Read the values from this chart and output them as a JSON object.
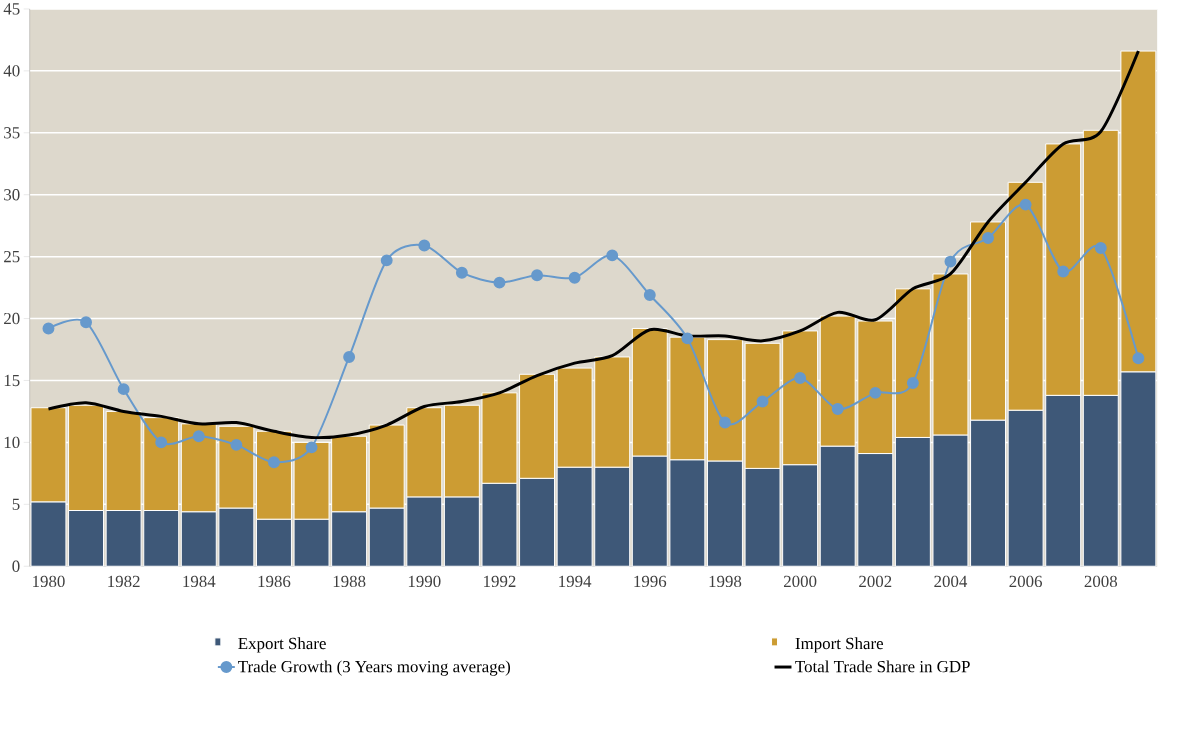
{
  "chart_data": {
    "type": "bar",
    "stacked": true,
    "categories": [
      "1980",
      null,
      "1982",
      null,
      "1984",
      null,
      "1986",
      null,
      "1988",
      null,
      "1990",
      null,
      "1992",
      null,
      "1994",
      null,
      "1996",
      null,
      "1998",
      null,
      "2000",
      null,
      "2002",
      null,
      "2004",
      null,
      "2006",
      null,
      "2008",
      null
    ],
    "series": [
      {
        "name": "Export Share",
        "color": "#3e5878",
        "values": [
          5.2,
          4.5,
          4.5,
          4.5,
          4.4,
          4.7,
          3.8,
          3.8,
          4.4,
          4.7,
          5.6,
          5.6,
          6.7,
          7.1,
          8.0,
          8.0,
          8.9,
          8.6,
          8.5,
          7.9,
          8.2,
          9.7,
          9.1,
          10.4,
          10.6,
          11.8,
          12.6,
          13.8,
          13.8,
          15.7
        ]
      },
      {
        "name": "Import Share",
        "color": "#cc9c33",
        "values": [
          7.6,
          8.5,
          8.0,
          7.5,
          7.1,
          6.6,
          7.1,
          6.2,
          6.1,
          6.7,
          7.2,
          7.4,
          7.3,
          8.4,
          8.0,
          8.9,
          10.3,
          9.9,
          9.8,
          10.1,
          10.8,
          10.5,
          10.7,
          12.0,
          13.0,
          16.0,
          18.4,
          20.3,
          21.4,
          25.9
        ]
      },
      {
        "name": "Trade Growth (3  Years moving average)",
        "type": "line",
        "marker": "circle",
        "color": "#6699cc",
        "values": [
          19.2,
          19.7,
          14.3,
          10.0,
          10.5,
          9.8,
          8.4,
          9.6,
          16.9,
          24.7,
          25.9,
          23.7,
          22.9,
          23.5,
          23.3,
          25.1,
          21.9,
          18.4,
          11.6,
          13.3,
          15.2,
          12.7,
          14.0,
          14.8,
          24.6,
          26.5,
          29.2,
          23.8,
          25.7,
          16.8
        ]
      },
      {
        "name": "Total Trade Share in GDP",
        "type": "line",
        "marker": "none",
        "color": "#000000",
        "values": [
          12.7,
          13.2,
          12.5,
          12.1,
          11.5,
          11.6,
          10.9,
          10.4,
          10.6,
          11.4,
          12.9,
          13.3,
          14.0,
          15.4,
          16.4,
          17.0,
          19.1,
          18.6,
          18.6,
          18.2,
          19.0,
          20.5,
          19.9,
          22.4,
          23.6,
          27.8,
          31.0,
          34.1,
          35.1,
          41.6
        ]
      }
    ],
    "ylim": [
      0,
      45
    ],
    "yticks": [
      0,
      5,
      10,
      15,
      20,
      25,
      30,
      35,
      40,
      45
    ],
    "grid": "y",
    "legend": "bottom"
  }
}
